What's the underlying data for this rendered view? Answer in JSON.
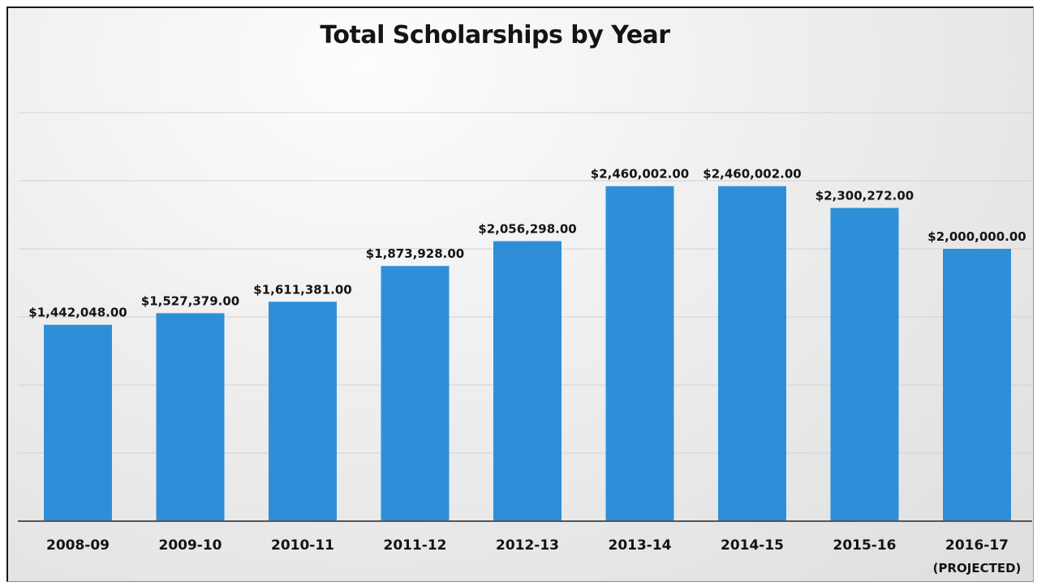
{
  "chart_data": {
    "type": "bar",
    "title": "Total Scholarships by Year",
    "categories": [
      "2008-09",
      "2009-10",
      "2010-11",
      "2011-12",
      "2012-13",
      "2013-14",
      "2014-15",
      "2015-16",
      "2016-17"
    ],
    "category_subtitles": [
      "",
      "",
      "",
      "",
      "",
      "",
      "",
      "",
      "(PROJECTED)"
    ],
    "values": [
      1442048,
      1527379,
      1611381,
      1873928,
      2056298,
      2460002,
      2460002,
      2300272,
      2000000
    ],
    "value_labels": [
      "$1,442,048.00",
      "$1,527,379.00",
      "$1,611,381.00",
      "$1,873,928.00",
      "$2,056,298.00",
      "$2,460,002.00",
      "$2,460,002.00",
      "$2,300,272.00",
      "$2,000,000.00"
    ],
    "xlabel": "",
    "ylabel": "",
    "ylim": [
      0,
      3000000
    ],
    "grid": true,
    "legend": "none",
    "colors": {
      "bar": "#2e8fd8",
      "text": "#141414"
    }
  }
}
